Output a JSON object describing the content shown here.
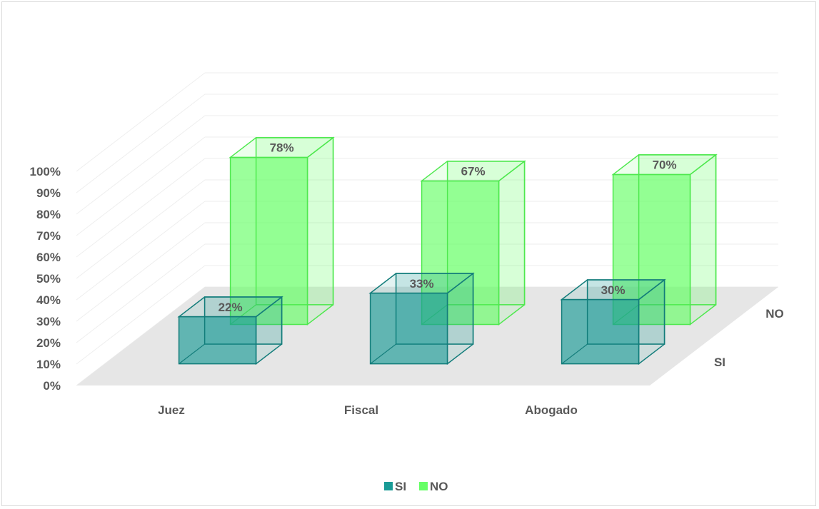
{
  "chart_data": {
    "type": "bar",
    "subtype": "3d-column",
    "categories": [
      "Juez",
      "Fiscal",
      "Abogado"
    ],
    "series": [
      {
        "name": "SI",
        "values": [
          22,
          33,
          30
        ],
        "labels": [
          "22%",
          "33%",
          "30%"
        ]
      },
      {
        "name": "NO",
        "values": [
          78,
          67,
          70
        ],
        "labels": [
          "78%",
          "67%",
          "70%"
        ]
      }
    ],
    "y_ticks": [
      "0%",
      "10%",
      "20%",
      "30%",
      "40%",
      "50%",
      "60%",
      "70%",
      "80%",
      "90%",
      "100%"
    ],
    "depth_ticks": [
      "SI",
      "NO"
    ],
    "ylim": [
      0,
      100
    ],
    "grid": true,
    "legend": "bottom",
    "colors": {
      "SI": "#1a9b96",
      "NO": "#66ff66",
      "SI_stroke": "#127c7a",
      "NO_stroke": "#4ee84e",
      "floor": "#e6e6e6",
      "grid": "#eeeeee"
    }
  }
}
